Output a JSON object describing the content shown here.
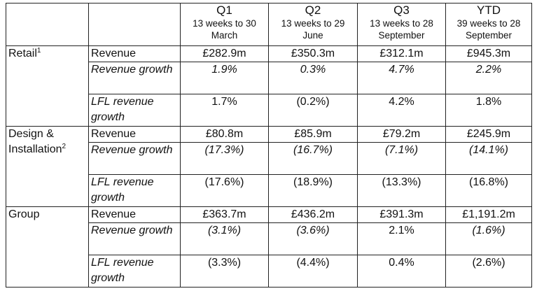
{
  "header": {
    "q1": {
      "title": "Q1",
      "sub": "13 weeks to 30 March"
    },
    "q2": {
      "title": "Q2",
      "sub": "13 weeks to 29 June"
    },
    "q3": {
      "title": "Q3",
      "sub": "13 weeks to 28 September"
    },
    "ytd": {
      "title": "YTD",
      "sub": "39 weeks to 28 September"
    }
  },
  "metrics": {
    "revenue": "Revenue",
    "revenue_growth": "Revenue growth",
    "lfl_revenue_growth": "LFL revenue growth"
  },
  "segments": {
    "retail": {
      "name": "Retail",
      "footnote": "1",
      "revenue": [
        "£282.9m",
        "£350.3m",
        "£312.1m",
        "£945.3m"
      ],
      "revenue_growth": [
        "1.9%",
        "0.3%",
        "4.7%",
        "2.2%"
      ],
      "lfl_revenue_growth": [
        "1.7%",
        "(0.2%)",
        "4.2%",
        "1.8%"
      ]
    },
    "design": {
      "name": "Design & Installation",
      "footnote": "2",
      "revenue": [
        "£80.8m",
        "£85.9m",
        "£79.2m",
        "£245.9m"
      ],
      "revenue_growth": [
        "(17.3%)",
        "(16.7%)",
        "(7.1%)",
        "(14.1%)"
      ],
      "lfl_revenue_growth": [
        "(17.6%)",
        "(18.9%)",
        "(13.3%)",
        "(16.8%)"
      ]
    },
    "group": {
      "name": "Group",
      "footnote": "",
      "revenue": [
        "£363.7m",
        "£436.2m",
        "£391.3m",
        "£1,191.2m"
      ],
      "revenue_growth": [
        "(3.1%)",
        "(3.6%)",
        "2.1%",
        "(1.6%)"
      ],
      "lfl_revenue_growth": [
        "(3.3%)",
        "(4.4%)",
        "0.4%",
        "(2.6%)"
      ]
    }
  }
}
